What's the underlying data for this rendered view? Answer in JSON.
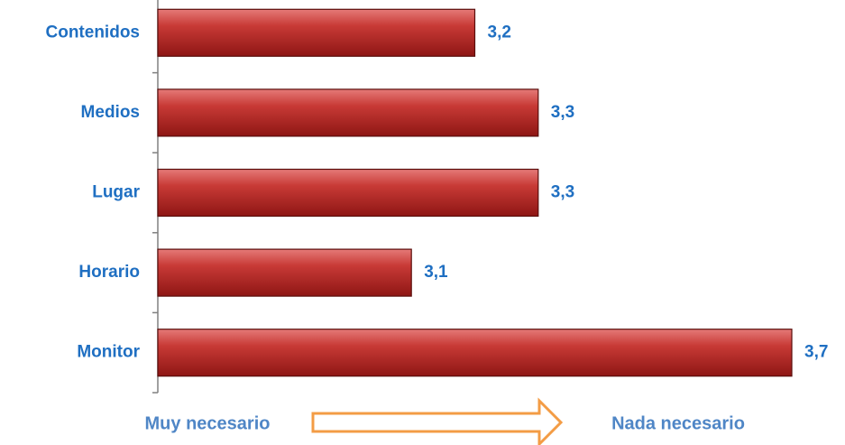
{
  "chart_data": {
    "type": "hbar",
    "categories": [
      "Contenidos",
      "Medios",
      "Lugar",
      "Horario",
      "Monitor"
    ],
    "values": [
      3.2,
      3.3,
      3.3,
      3.1,
      3.7
    ],
    "value_labels": [
      "3,2",
      "3,3",
      "3,3",
      "3,1",
      "3,7"
    ],
    "color": "#c0302e",
    "xlim": [
      2.7,
      3.7
    ],
    "axis_labels": {
      "left": "Muy necesario",
      "right": "Nada necesario"
    }
  }
}
